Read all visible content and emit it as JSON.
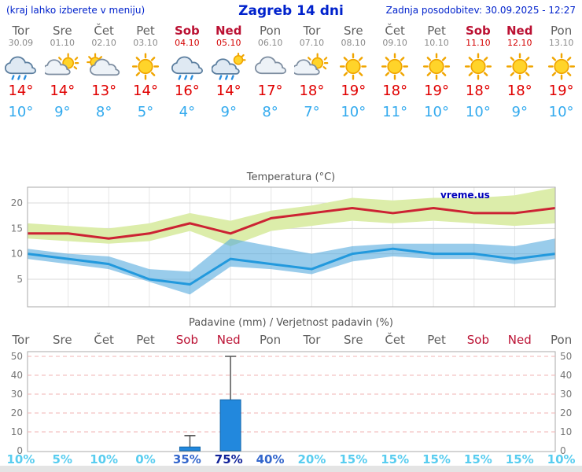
{
  "header": {
    "hint": "(kraj lahko izberete v meniju)",
    "title": "Zagreb 14 dni",
    "updated": "Zadnja posodobitev: 30.09.2025 - 12:27"
  },
  "colors": {
    "accent_blue": "#0022cc",
    "temp_max": "#e00000",
    "temp_min": "#33aaee",
    "weekday": "#606060",
    "weekend": "#bb1133",
    "pop_low": "#58cdf0",
    "pop_mid": "#3366cc",
    "pop_high": "#112299"
  },
  "days": [
    {
      "name": "Tor",
      "date": "30.09",
      "icon": "rain",
      "tmax": "14°",
      "tmin": "10°",
      "pop": "10%",
      "pop_level": "low",
      "weekend": false
    },
    {
      "name": "Sre",
      "date": "01.10",
      "icon": "partly-cloudy",
      "tmax": "14°",
      "tmin": "9°",
      "pop": "5%",
      "pop_level": "low",
      "weekend": false
    },
    {
      "name": "Čet",
      "date": "02.10",
      "icon": "mostly-cloudy",
      "tmax": "13°",
      "tmin": "8°",
      "pop": "10%",
      "pop_level": "low",
      "weekend": false
    },
    {
      "name": "Pet",
      "date": "03.10",
      "icon": "sunny",
      "tmax": "14°",
      "tmin": "5°",
      "pop": "0%",
      "pop_level": "low",
      "weekend": false
    },
    {
      "name": "Sob",
      "date": "04.10",
      "icon": "rain",
      "tmax": "16°",
      "tmin": "4°",
      "pop": "35%",
      "pop_level": "mid",
      "weekend": true
    },
    {
      "name": "Ned",
      "date": "05.10",
      "icon": "showers",
      "tmax": "14°",
      "tmin": "9°",
      "pop": "75%",
      "pop_level": "high",
      "weekend": true
    },
    {
      "name": "Pon",
      "date": "06.10",
      "icon": "cloudy",
      "tmax": "17°",
      "tmin": "8°",
      "pop": "40%",
      "pop_level": "mid",
      "weekend": false
    },
    {
      "name": "Tor",
      "date": "07.10",
      "icon": "partly-cloudy",
      "tmax": "18°",
      "tmin": "7°",
      "pop": "20%",
      "pop_level": "low",
      "weekend": false
    },
    {
      "name": "Sre",
      "date": "08.10",
      "icon": "sunny",
      "tmax": "19°",
      "tmin": "10°",
      "pop": "15%",
      "pop_level": "low",
      "weekend": false
    },
    {
      "name": "Čet",
      "date": "09.10",
      "icon": "sunny",
      "tmax": "18°",
      "tmin": "11°",
      "pop": "15%",
      "pop_level": "low",
      "weekend": false
    },
    {
      "name": "Pet",
      "date": "10.10",
      "icon": "sunny",
      "tmax": "19°",
      "tmin": "10°",
      "pop": "15%",
      "pop_level": "low",
      "weekend": false
    },
    {
      "name": "Sob",
      "date": "11.10",
      "icon": "sunny",
      "tmax": "18°",
      "tmin": "10°",
      "pop": "15%",
      "pop_level": "low",
      "weekend": true
    },
    {
      "name": "Ned",
      "date": "12.10",
      "icon": "sunny",
      "tmax": "18°",
      "tmin": "9°",
      "pop": "15%",
      "pop_level": "low",
      "weekend": true
    },
    {
      "name": "Pon",
      "date": "13.10",
      "icon": "sunny",
      "tmax": "19°",
      "tmin": "10°",
      "pop": "10%",
      "pop_level": "low",
      "weekend": false
    }
  ],
  "chart_data": [
    {
      "type": "line",
      "title": "Temperatura (°C)",
      "watermark": "vreme.us",
      "x_labels": [
        "Tor",
        "Sre",
        "Čet",
        "Pet",
        "Sob",
        "Ned",
        "Pon",
        "Tor",
        "Sre",
        "Čet",
        "Pet",
        "Sob",
        "Ned",
        "Pon"
      ],
      "ylim": [
        0,
        23
      ],
      "yticks": [
        5,
        10,
        15,
        20
      ],
      "grid": true,
      "series": [
        {
          "name": "max-band-top",
          "values": [
            16,
            15.5,
            15,
            16,
            18,
            16.5,
            18.5,
            19.5,
            21,
            20.5,
            21,
            21,
            21.5,
            23
          ]
        },
        {
          "name": "max-band-bottom",
          "values": [
            13,
            12.5,
            12,
            12.5,
            14.5,
            11.5,
            14.5,
            15.5,
            16.5,
            16,
            16.5,
            16,
            15.5,
            16
          ]
        },
        {
          "name": "max",
          "values": [
            14,
            14,
            13,
            14,
            16,
            14,
            17,
            18,
            19,
            18,
            19,
            18,
            18,
            19
          ]
        },
        {
          "name": "min-band-top",
          "values": [
            11,
            10,
            9.5,
            7,
            6.5,
            13,
            11.5,
            10,
            11.5,
            12,
            12,
            12,
            11.5,
            13
          ]
        },
        {
          "name": "min-band-bottom",
          "values": [
            9,
            8,
            7,
            4.5,
            2,
            7.5,
            7,
            6,
            8.5,
            9.5,
            9,
            9,
            8,
            9
          ]
        },
        {
          "name": "min",
          "values": [
            10,
            9,
            8,
            5,
            4,
            9,
            8,
            7,
            10,
            11,
            10,
            10,
            9,
            10
          ]
        }
      ],
      "colors": {
        "max_line": "#cc2233",
        "min_line": "#2299dd",
        "max_band": "#dcedaa",
        "min_band": "#55aadd"
      }
    },
    {
      "type": "bar",
      "title": "Padavine (mm) / Verjetnost padavin (%)",
      "x_labels": [
        "Tor",
        "Sre",
        "Čet",
        "Pet",
        "Sob",
        "Ned",
        "Pon",
        "Tor",
        "Sre",
        "Čet",
        "Pet",
        "Sob",
        "Ned",
        "Pon"
      ],
      "ylim": [
        0,
        53
      ],
      "yticks": [
        0,
        10,
        20,
        30,
        40,
        50
      ],
      "grid": true,
      "precip_mm": [
        0,
        0,
        0,
        0,
        2,
        27,
        0,
        0,
        0,
        0,
        0,
        0,
        0,
        0
      ],
      "whisker_max": [
        0,
        0,
        0,
        0,
        8,
        50,
        0,
        0,
        0,
        0,
        0,
        0,
        0,
        0
      ],
      "pop_percent": [
        "10%",
        "5%",
        "10%",
        "0%",
        "35%",
        "75%",
        "40%",
        "20%",
        "15%",
        "15%",
        "15%",
        "15%",
        "15%",
        "10%"
      ],
      "colors": {
        "bar": "#2288dd",
        "bar_border": "#1166aa",
        "whisker": "#555555",
        "gridline": "#f2b3b3"
      }
    }
  ]
}
